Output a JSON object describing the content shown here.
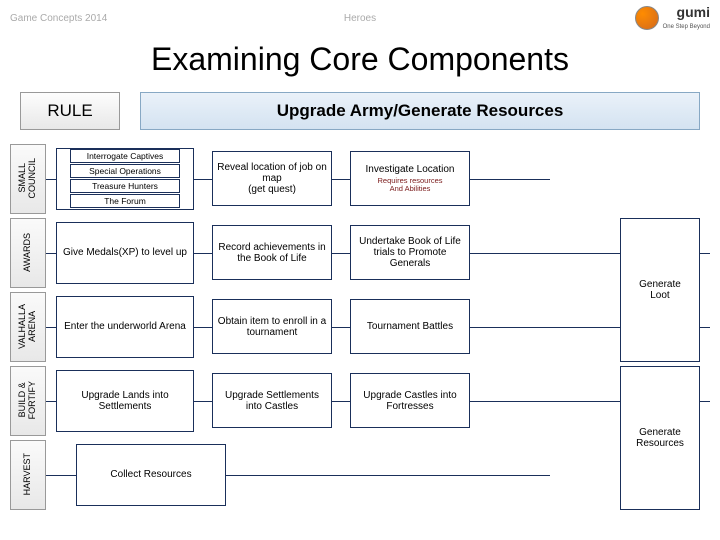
{
  "header": {
    "left": "Game Concepts 2014",
    "center": "Heroes",
    "logo_text": "gumi",
    "logo_sub": "One Step Beyond"
  },
  "title": "Examining Core Components",
  "rule_label": "RULE",
  "upgrade_label": "Upgrade Army/Generate Resources",
  "categories": [
    "SMALL\nCOUNCIL",
    "AWARDS",
    "VALHALLA\nARENA",
    "BUILD &\nFORTIFY",
    "HARVEST"
  ],
  "rows": [
    {
      "first_sub": [
        "Interrogate Captives",
        "Special Operations",
        "Treasure Hunters",
        "The Forum"
      ],
      "c2": "Reveal location of job on map\n(get quest)",
      "c3": "Investigate Location",
      "c3_sub": "Requires resources\nAnd Abilities"
    },
    {
      "first": "Give Medals(XP) to level up",
      "c2": "Record achievements in the Book of Life",
      "c3": "Undertake Book of Life trials to Promote Generals"
    },
    {
      "first": "Enter the underworld Arena",
      "c2": "Obtain item to enroll in a tournament",
      "c3": "Tournament Battles"
    },
    {
      "first": "Upgrade Lands into Settlements",
      "c2": "Upgrade Settlements into Castles",
      "c3": "Upgrade Castles into Fortresses"
    },
    {
      "first": "Collect Resources"
    }
  ],
  "end_labels": {
    "loot": "Generate\nLoot",
    "resources": "Generate\nResources"
  },
  "colors": {
    "border": "#1a2f5a",
    "sub_text": "#7a1a1a"
  }
}
